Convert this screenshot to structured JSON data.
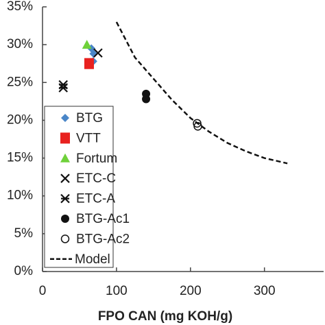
{
  "chart_data": {
    "type": "scatter",
    "x_label": "FPO CAN (mg KOH/g)",
    "xlim": [
      0,
      380
    ],
    "xticks": [
      0,
      100,
      200,
      300
    ],
    "ylim": [
      0,
      35
    ],
    "yticks": [
      {
        "value": 0,
        "label": "0%"
      },
      {
        "value": 5,
        "label": "5%"
      },
      {
        "value": 10,
        "label": "10%"
      },
      {
        "value": 15,
        "label": "15%"
      },
      {
        "value": 20,
        "label": "20%"
      },
      {
        "value": 25,
        "label": "25%"
      },
      {
        "value": 30,
        "label": "30%"
      },
      {
        "value": 35,
        "label": "35%"
      }
    ],
    "grid": false,
    "legend": "lower-left",
    "series": [
      {
        "name": "BTG",
        "color": "#4a86c8",
        "marker": "diamond",
        "x": [
          66,
          69,
          68.5
        ],
        "values": [
          29.5,
          28.8,
          27.8
        ]
      },
      {
        "name": "VTT",
        "color": "#e8211f",
        "marker": "square",
        "x": [
          63
        ],
        "values": [
          27.5
        ]
      },
      {
        "name": "Fortum",
        "color": "#6fd13a",
        "marker": "triangle",
        "x": [
          60
        ],
        "values": [
          30
        ]
      },
      {
        "name": "ETC-C",
        "color": "#111111",
        "marker": "x",
        "x": [
          75
        ],
        "values": [
          28.9
        ]
      },
      {
        "name": "ETC-A",
        "color": "#111111",
        "marker": "asterisk",
        "x": [
          28,
          28
        ],
        "values": [
          24.7,
          24.3
        ]
      },
      {
        "name": "BTG-Ac1",
        "color": "#111111",
        "marker": "circle",
        "x": [
          140,
          140
        ],
        "values": [
          23.5,
          22.8
        ]
      },
      {
        "name": "BTG-Ac2",
        "color": "#111111",
        "marker": "open-circle",
        "x": [
          209,
          210
        ],
        "values": [
          19.6,
          19.2
        ]
      },
      {
        "name": "Model",
        "color": "#111111",
        "marker": "dashed-line",
        "x": [
          100,
          125,
          150,
          175,
          200,
          225,
          250,
          275,
          300,
          331
        ],
        "values": [
          33,
          28.3,
          25.5,
          22.7,
          20.3,
          18.5,
          17,
          15.9,
          15,
          14.3
        ]
      }
    ]
  }
}
